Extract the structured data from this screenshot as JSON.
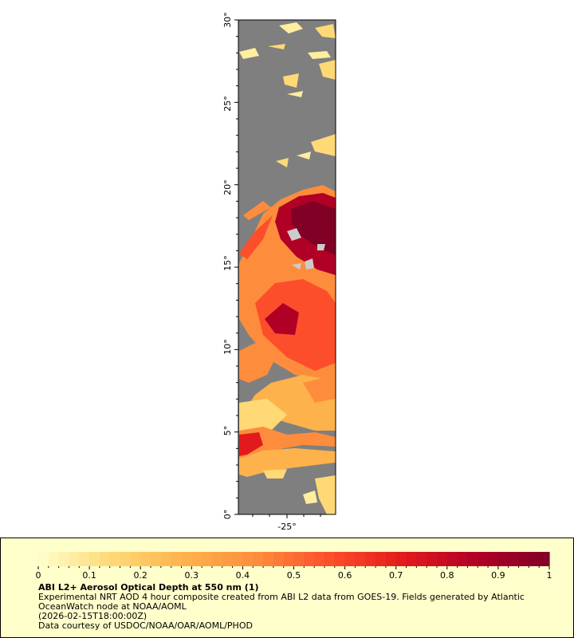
{
  "map": {
    "lat_ticks": [
      "0°",
      "5°",
      "10°",
      "15°",
      "20°",
      "25°",
      "30°"
    ],
    "lon_ticks": [
      "-25°"
    ],
    "land_color": "#7f7f7f",
    "frame_color": "#000000"
  },
  "colorbar": {
    "ticks": [
      "0",
      "0.1",
      "0.2",
      "0.3",
      "0.4",
      "0.5",
      "0.6",
      "0.7",
      "0.8",
      "0.9",
      "1"
    ],
    "range": [
      0,
      1
    ],
    "colors": [
      "#ffffcc",
      "#fed976",
      "#feb24c",
      "#fd8d3c",
      "#fc4e2a",
      "#e31a1c",
      "#b10026",
      "#800026"
    ]
  },
  "caption": {
    "title": "ABI L2+ Aerosol Optical Depth at 550 nm (1)",
    "line1": "Experimental NRT AOD 4 hour composite created from ABI L2 data from GOES-19. Fields generated by Atlantic",
    "line2": "OceanWatch node at NOAA/AOML",
    "line3": "(2026-02-15T18:00:00Z)",
    "line4": "Data courtesy of USDOC/NOAA/OAR/AOML/PHOD"
  }
}
